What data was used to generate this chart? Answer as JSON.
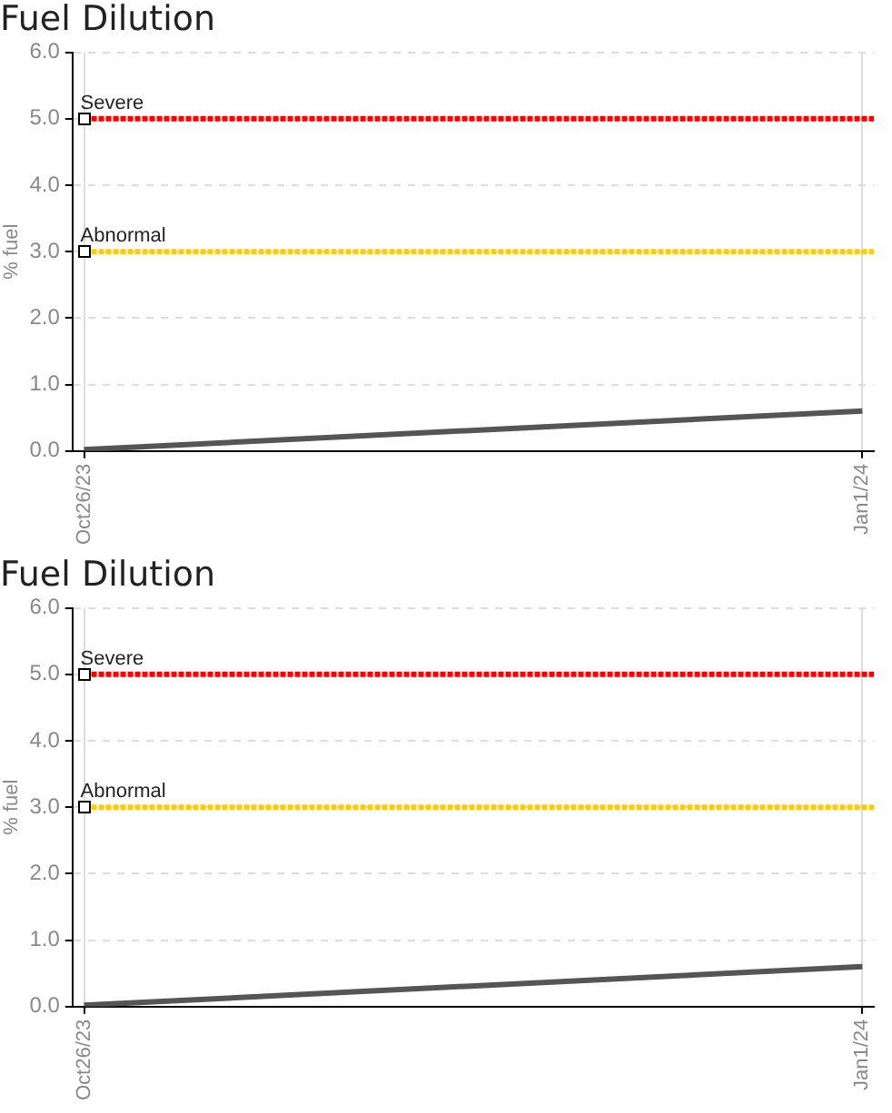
{
  "chart_data": [
    {
      "type": "line",
      "title": "Fuel Dilution",
      "ylabel": "% fuel",
      "x": [
        "2023-10-26",
        "2024-01-01"
      ],
      "series": [
        {
          "color": "#555555",
          "values": [
            0.02,
            0.6
          ]
        }
      ],
      "xlim": [
        "2023-10-25",
        "2024-01-02"
      ],
      "xticks": [
        {
          "value": "2023-10-26",
          "label": "Oct26/23"
        },
        {
          "value": "2024-01-01",
          "label": "Jan1/24"
        }
      ],
      "ylim": [
        0,
        6
      ],
      "yticks": [
        {
          "value": 0,
          "label": "0.0"
        },
        {
          "value": 1,
          "label": "1.0"
        },
        {
          "value": 2,
          "label": "2.0"
        },
        {
          "value": 3,
          "label": "3.0"
        },
        {
          "value": 4,
          "label": "4.0"
        },
        {
          "value": 5,
          "label": "5.0"
        },
        {
          "value": 6,
          "label": "6.0"
        }
      ],
      "ref_lines": [
        {
          "axis": "y",
          "value": 5,
          "label": "Severe",
          "color": "#ff0000",
          "line_style": "dotted"
        },
        {
          "axis": "y",
          "value": 3,
          "label": "Abnormal",
          "color": "#ffcc00",
          "line_style": "dotted"
        }
      ],
      "grid": true,
      "legend": false,
      "marker": "none"
    },
    {
      "type": "line",
      "title": "Fuel Dilution",
      "ylabel": "% fuel",
      "x": [
        "2023-10-26",
        "2024-01-01"
      ],
      "series": [
        {
          "color": "#555555",
          "values": [
            0.02,
            0.6
          ]
        }
      ],
      "xlim": [
        "2023-10-25",
        "2024-01-02"
      ],
      "xticks": [
        {
          "value": "2023-10-26",
          "label": "Oct26/23"
        },
        {
          "value": "2024-01-01",
          "label": "Jan1/24"
        }
      ],
      "ylim": [
        0,
        6
      ],
      "yticks": [
        {
          "value": 0,
          "label": "0.0"
        },
        {
          "value": 1,
          "label": "1.0"
        },
        {
          "value": 2,
          "label": "2.0"
        },
        {
          "value": 3,
          "label": "3.0"
        },
        {
          "value": 4,
          "label": "4.0"
        },
        {
          "value": 5,
          "label": "5.0"
        },
        {
          "value": 6,
          "label": "6.0"
        }
      ],
      "ref_lines": [
        {
          "axis": "y",
          "value": 5,
          "label": "Severe",
          "color": "#ff0000",
          "line_style": "dotted"
        },
        {
          "axis": "y",
          "value": 3,
          "label": "Abnormal",
          "color": "#ffcc00",
          "line_style": "dotted"
        }
      ],
      "grid": true,
      "legend": false,
      "marker": "none"
    }
  ]
}
